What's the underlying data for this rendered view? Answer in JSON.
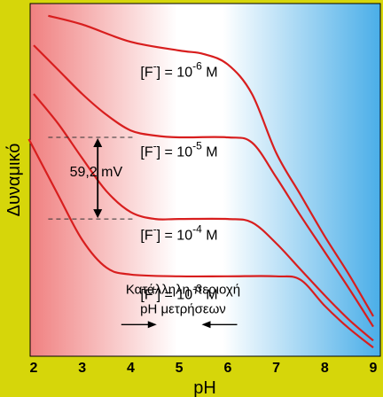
{
  "chart_data": {
    "type": "line",
    "xlabel": "pH",
    "ylabel": "Δυναμικό",
    "xlim": [
      1.9,
      9.1
    ],
    "ylim": [
      0,
      100
    ],
    "x_ticks": [
      "2",
      "3",
      "4",
      "5",
      "6",
      "7",
      "8",
      "9"
    ],
    "series": [
      {
        "name": "[F-] = 10-6 M",
        "x": [
          2.3,
          3.0,
          4.0,
          5.0,
          5.5,
          6.0,
          6.5,
          7.0,
          7.5,
          8.0,
          8.5,
          9.0
        ],
        "y": [
          97.5,
          95.0,
          90.0,
          87.5,
          86.5,
          83.5,
          75.0,
          58.0,
          46.0,
          34.0,
          23.0,
          11.0
        ]
      },
      {
        "name": "[F-] = 10-5 M",
        "x": [
          2.0,
          2.5,
          3.0,
          3.5,
          4.0,
          4.5,
          5.0,
          6.0,
          6.5,
          7.0,
          7.5,
          8.0,
          8.5,
          9.0
        ],
        "y": [
          89.0,
          82.0,
          75.0,
          69.0,
          64.5,
          63.0,
          62.5,
          62.5,
          61.0,
          51.0,
          40.0,
          29.5,
          19.0,
          8.0
        ]
      },
      {
        "name": "[F-] = 10-4 M",
        "x": [
          2.0,
          2.5,
          3.0,
          3.5,
          4.0,
          4.5,
          5.0,
          6.0,
          6.5,
          7.0,
          7.5,
          8.0,
          8.5,
          9.0
        ],
        "y": [
          75.0,
          66.5,
          56.5,
          47.0,
          41.0,
          39.0,
          39.0,
          39.0,
          38.0,
          32.0,
          24.5,
          17.0,
          10.0,
          4.0
        ]
      },
      {
        "name": "[F-] = 10-3 M",
        "x": [
          1.9,
          2.5,
          3.0,
          3.5,
          4.0,
          5.0,
          6.0,
          7.0,
          7.5,
          8.0,
          8.5,
          9.0
        ],
        "y": [
          62.0,
          46.0,
          33.0,
          25.0,
          23.0,
          22.5,
          22.5,
          22.5,
          21.5,
          14.0,
          7.5,
          2.0
        ]
      }
    ],
    "curve_labels": [
      {
        "prefix": "[F",
        "sup_minus": "-",
        "middle": "] = 10",
        "exponent": "-6",
        "suffix": " M"
      },
      {
        "prefix": "[F",
        "sup_minus": "-",
        "middle": "] = 10",
        "exponent": "-5",
        "suffix": " M"
      },
      {
        "prefix": "[F",
        "sup_minus": "-",
        "middle": "] = 10",
        "exponent": "-4",
        "suffix": " M"
      },
      {
        "prefix": "[F",
        "sup_minus": "-",
        "middle": "] = 10",
        "exponent": "-3",
        "suffix": " M"
      }
    ],
    "annotations": {
      "delta": "59,2 mV",
      "range_line1": "Κατάλληλη περιοχή",
      "range_line2": "pH μετρήσεων",
      "range_ph": [
        4.5,
        5.5
      ]
    },
    "grid": false,
    "colors": {
      "frame": "#d6d60a",
      "curve": "#d81e1e",
      "gradient_left": "#f08080",
      "gradient_mid": "#ffffff",
      "gradient_right": "#4aaee8"
    }
  }
}
